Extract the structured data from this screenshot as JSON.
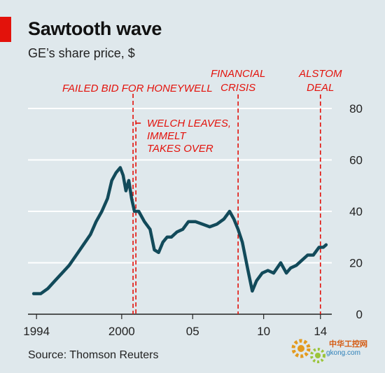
{
  "header": {
    "title": "Sawtooth wave",
    "subtitle": "GE’s share price, $"
  },
  "footer": {
    "source": "Source: Thomson Reuters"
  },
  "watermark": {
    "line1": "中华工控网",
    "line2": "gkong.com"
  },
  "colors": {
    "background": "#dfe8ec",
    "line": "#124a5a",
    "accent": "#e3120b",
    "grid": "#ffffff"
  },
  "chart_data": {
    "type": "line",
    "title": "Sawtooth wave",
    "subtitle": "GE’s share price, $",
    "xlabel": "",
    "ylabel": "",
    "xlim": [
      1993.4,
      2014.8
    ],
    "ylim": [
      0,
      80
    ],
    "y_ticks": [
      0,
      20,
      40,
      60,
      80
    ],
    "y_axis_side": "right",
    "grid": "horizontal",
    "x_ticks": [
      {
        "value": 1994,
        "label": "1994"
      },
      {
        "value": 2000,
        "label": "2000"
      },
      {
        "value": 2005,
        "label": "05"
      },
      {
        "value": 2010,
        "label": "10"
      },
      {
        "value": 2014,
        "label": "14"
      }
    ],
    "annotations": [
      {
        "x": 2000.8,
        "lines": [
          "FAILED BID FOR HONEYWELL"
        ]
      },
      {
        "x": 2001.0,
        "lines": [
          "WELCH LEAVES,",
          "IMMELT",
          "TAKES OVER"
        ]
      },
      {
        "x": 2008.2,
        "lines": [
          "FINANCIAL",
          "CRISIS"
        ]
      },
      {
        "x": 2014.0,
        "lines": [
          "ALSTOM",
          "DEAL"
        ]
      }
    ],
    "series": [
      {
        "x": [
          1993.8,
          1994.3,
          1994.8,
          1995.3,
          1995.8,
          1996.3,
          1996.8,
          1997.3,
          1997.8,
          1998.2,
          1998.6,
          1999.0,
          1999.3,
          1999.6,
          1999.9,
          2000.1,
          2000.3,
          2000.5,
          2000.7,
          2000.9,
          2001.2,
          2001.6,
          2002.0,
          2002.3,
          2002.6,
          2002.9,
          2003.2,
          2003.5,
          2003.9,
          2004.3,
          2004.7,
          2005.2,
          2005.7,
          2006.2,
          2006.7,
          2007.2,
          2007.6,
          2007.9,
          2008.2,
          2008.5,
          2008.9,
          2009.2,
          2009.5,
          2009.9,
          2010.3,
          2010.7,
          2011.2,
          2011.6,
          2011.9,
          2012.3,
          2012.7,
          2013.1,
          2013.5,
          2013.9,
          2014.2,
          2014.4
        ],
        "values": [
          8,
          8,
          10,
          13,
          16,
          19,
          23,
          27,
          31,
          36,
          40,
          45,
          52,
          55,
          57,
          54,
          48,
          52,
          45,
          40,
          40,
          36,
          33,
          25,
          24,
          28,
          30,
          30,
          32,
          33,
          36,
          36,
          35,
          34,
          35,
          37,
          40,
          37,
          33,
          28,
          17,
          9,
          13,
          16,
          17,
          16,
          20,
          16,
          18,
          19,
          21,
          23,
          23,
          26,
          26,
          27
        ]
      }
    ]
  }
}
